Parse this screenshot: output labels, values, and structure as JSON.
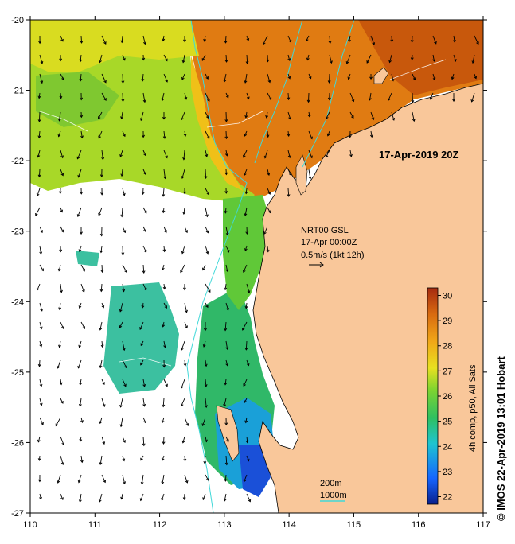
{
  "map": {
    "date_label": "17-Apr-2019 20Z",
    "current_source": "NRT00 GSL",
    "current_date": "17-Apr 00:00Z",
    "current_scale": "0.5m/s (1kt 12h)",
    "isobath_200": "200m",
    "isobath_1000": "1000m",
    "credit": "© IMOS 22-Apr-2019 13:01 Hobart",
    "lon_ticks": [
      "110",
      "111",
      "112",
      "113",
      "114",
      "115",
      "116",
      "117"
    ],
    "lat_ticks": [
      "-20",
      "-21",
      "-22",
      "-23",
      "-24",
      "-25",
      "-26",
      "-27"
    ],
    "colors": {
      "land": "#f9c79a",
      "isobath": "#40d8d8",
      "background": "#ffffff"
    }
  },
  "colorbar": {
    "title": "4h comp, p50, All Sats",
    "ticks": [
      "30",
      "29",
      "28",
      "27",
      "26",
      "25",
      "24",
      "23",
      "22"
    ],
    "range": [
      21.7,
      30.3
    ],
    "stops": [
      "#0a1f8c",
      "#1565ff",
      "#1ec4d0",
      "#2fc060",
      "#7fd430",
      "#e8e020",
      "#f1a818",
      "#d86a10",
      "#a52a10"
    ]
  }
}
